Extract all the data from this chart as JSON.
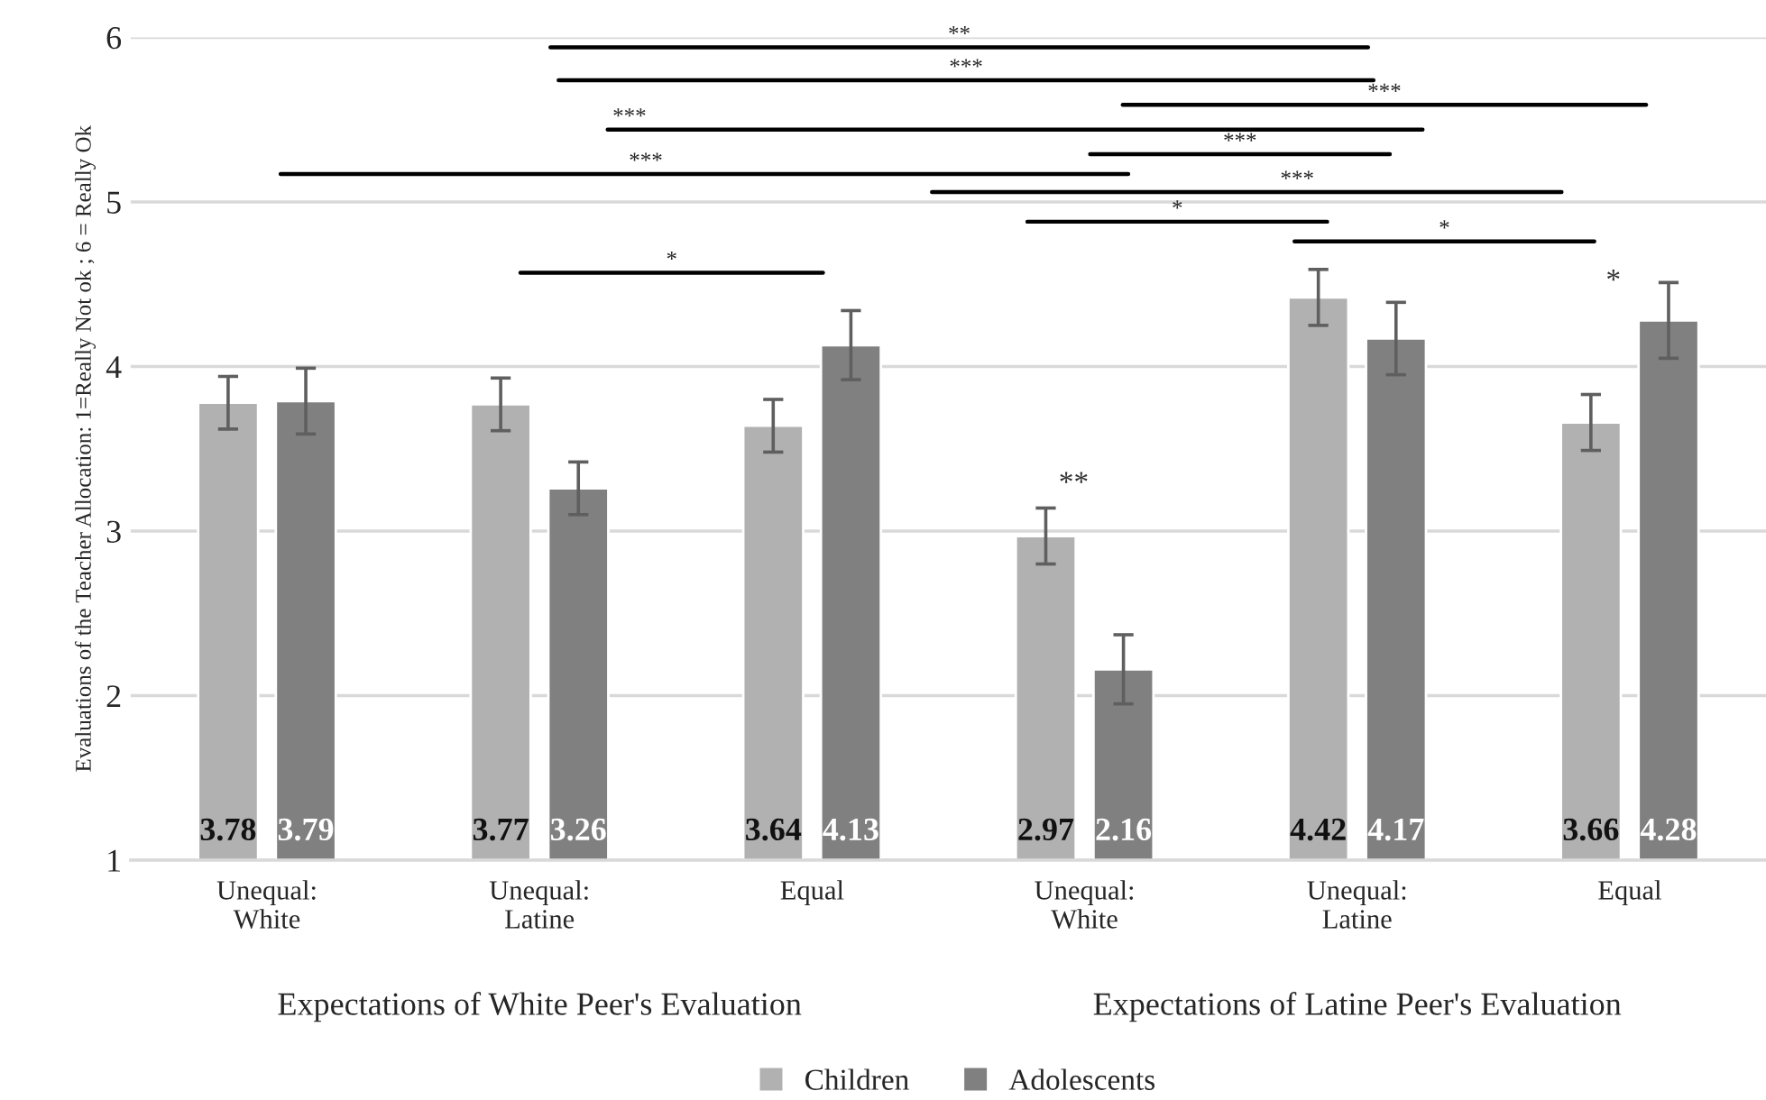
{
  "chart_data": {
    "type": "bar",
    "ylabel": "Evaluations of the Teacher Allocation: 1=Really Not ok ; 6 = Really Ok",
    "categories": [
      "Unequal:\nWhite",
      "Unequal:\nLatine",
      "Equal",
      "Unequal:\nWhite",
      "Unequal:\nLatine",
      "Equal"
    ],
    "series": [
      {
        "name": "Children",
        "color": "#b0b1b0",
        "values": [
          3.78,
          3.77,
          3.64,
          2.97,
          4.42,
          3.66
        ],
        "errors": [
          0.16,
          0.16,
          0.16,
          0.17,
          0.17,
          0.17
        ]
      },
      {
        "name": "Adolescents",
        "color": "#7f807f",
        "values": [
          3.79,
          3.26,
          4.13,
          2.16,
          4.17,
          4.28
        ],
        "errors": [
          0.2,
          0.16,
          0.21,
          0.21,
          0.22,
          0.23
        ]
      }
    ],
    "ylim": [
      1,
      6
    ],
    "yticks": [
      1,
      2,
      3,
      4,
      5,
      6
    ],
    "grid": "y",
    "data_labels": true,
    "legend": "bottom",
    "annotations": [
      "**",
      "***",
      "***",
      "***",
      "***",
      "***",
      "***",
      "*",
      "*",
      "*",
      "**",
      "*",
      "Expectations of White Peer's Evaluation",
      "Expectations of Latine Peer's Evaluation"
    ]
  }
}
